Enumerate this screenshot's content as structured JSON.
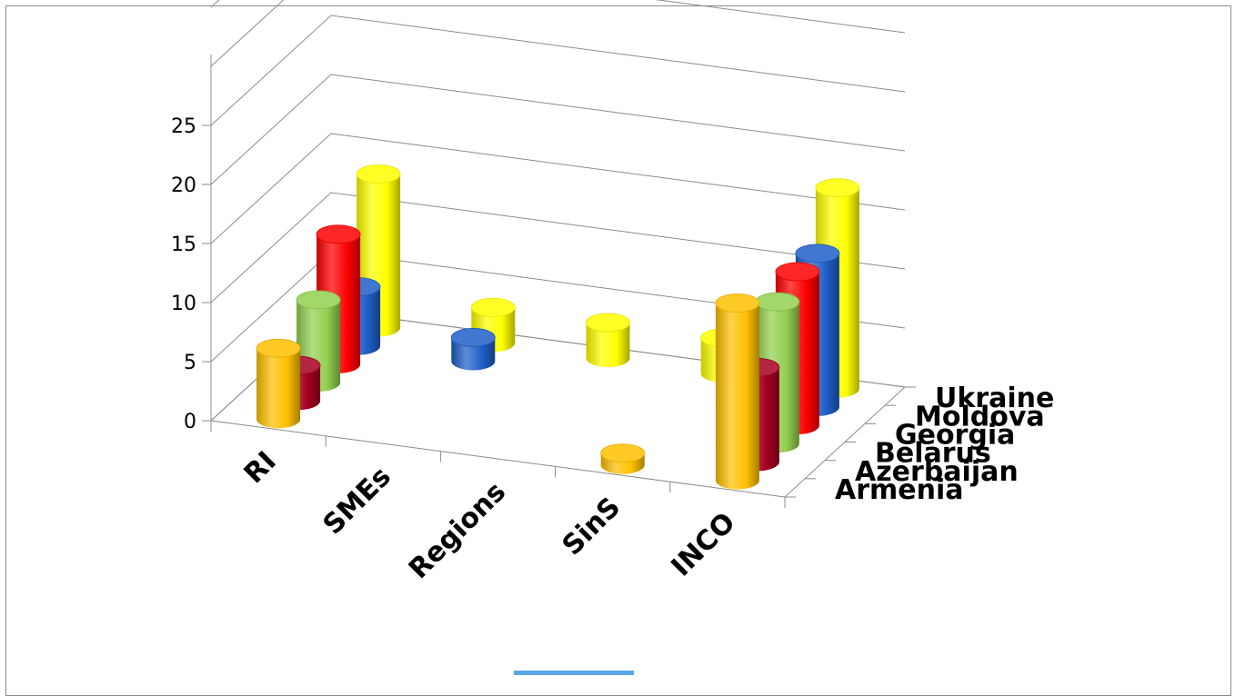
{
  "chart_data": {
    "type": "bar",
    "style": "3d-cylinder",
    "title": "",
    "categories": [
      "RI",
      "SMEs",
      "Regions",
      "SinS",
      "INCO"
    ],
    "ylim": [
      0,
      25
    ],
    "yticks": [
      "0",
      "5",
      "10",
      "15",
      "20",
      "25"
    ],
    "grid": true,
    "series": [
      {
        "name": "Armenia",
        "color": "#ffc000",
        "values": [
          6,
          0,
          0,
          1,
          15
        ]
      },
      {
        "name": "Azerbaijan",
        "color": "#a50021",
        "values": [
          3,
          0,
          0,
          0,
          8
        ]
      },
      {
        "name": "Belarus",
        "color": "#92d050",
        "values": [
          7,
          0,
          0,
          0,
          12
        ]
      },
      {
        "name": "Georgia",
        "color": "#ff0000",
        "values": [
          11,
          0,
          0,
          0,
          13
        ]
      },
      {
        "name": "Moldova",
        "color": "#1f5fc8",
        "values": [
          5,
          2,
          0,
          0,
          13
        ]
      },
      {
        "name": "Ukraine",
        "color": "#ffff00",
        "values": [
          13,
          3,
          3,
          3,
          17
        ]
      }
    ]
  }
}
